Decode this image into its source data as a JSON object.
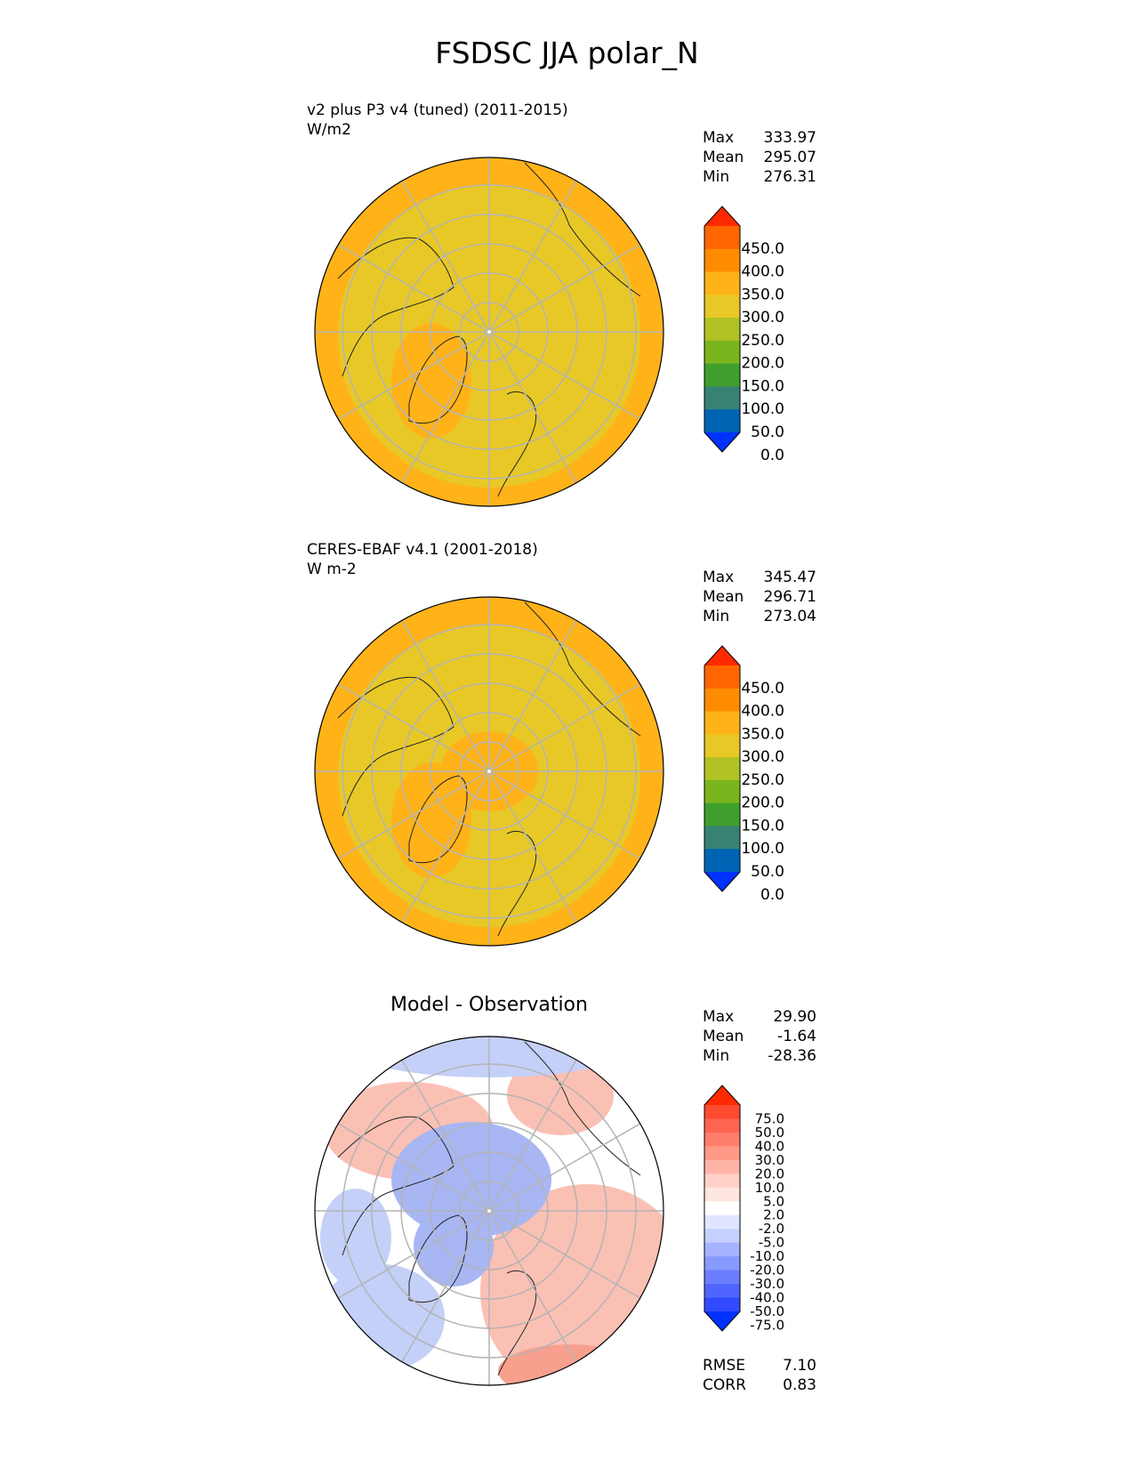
{
  "title": "FSDSC JJA polar_N",
  "panels": [
    {
      "title_line1": "v2 plus P3 v4 (tuned) (2011-2015)",
      "title_line2": "W/m2",
      "stats": [
        {
          "label": "Max",
          "value": "333.97"
        },
        {
          "label": "Mean",
          "value": "295.07"
        },
        {
          "label": "Min",
          "value": "276.31"
        }
      ],
      "colorbar": {
        "levels": [
          "450.0",
          "400.0",
          "350.0",
          "300.0",
          "250.0",
          "200.0",
          "150.0",
          "100.0",
          "50.0",
          "0.0"
        ],
        "colors": [
          "#ff2a00",
          "#ff6600",
          "#ff8c00",
          "#ffb319",
          "#e8c826",
          "#b0c224",
          "#7bb51d",
          "#3fa02d",
          "#378272",
          "#0064b4",
          "#0032ff"
        ]
      },
      "map": {
        "outer_fill": "#ffb319",
        "inner_fill": "#e8c826"
      }
    },
    {
      "title_line1": "CERES-EBAF v4.1 (2001-2018)",
      "title_line2": "W m-2",
      "stats": [
        {
          "label": "Max",
          "value": "345.47"
        },
        {
          "label": "Mean",
          "value": "296.71"
        },
        {
          "label": "Min",
          "value": "273.04"
        }
      ],
      "colorbar": {
        "levels": [
          "450.0",
          "400.0",
          "350.0",
          "300.0",
          "250.0",
          "200.0",
          "150.0",
          "100.0",
          "50.0",
          "0.0"
        ],
        "colors": [
          "#ff2a00",
          "#ff6600",
          "#ff8c00",
          "#ffb319",
          "#e8c826",
          "#b0c224",
          "#7bb51d",
          "#3fa02d",
          "#378272",
          "#0064b4",
          "#0032ff"
        ]
      },
      "map": {
        "outer_fill": "#ffb319",
        "inner_fill": "#e8c826"
      }
    },
    {
      "title_center": "Model - Observation",
      "stats": [
        {
          "label": "Max",
          "value": "29.90"
        },
        {
          "label": "Mean",
          "value": "-1.64"
        },
        {
          "label": "Min",
          "value": "-28.36"
        }
      ],
      "bottom_stats": [
        {
          "label": "RMSE",
          "value": "7.10"
        },
        {
          "label": "CORR",
          "value": "0.83"
        }
      ],
      "colorbar": {
        "levels": [
          "75.0",
          "50.0",
          "40.0",
          "30.0",
          "20.0",
          "10.0",
          "5.0",
          "2.0",
          "-2.0",
          "-5.0",
          "-10.0",
          "-20.0",
          "-30.0",
          "-40.0",
          "-50.0",
          "-75.0"
        ],
        "colors": [
          "#ff2a00",
          "#ff4a32",
          "#ff6450",
          "#ff7e6a",
          "#ff9a88",
          "#ffb4a6",
          "#ffd0c6",
          "#ffe6e0",
          "#ffffff",
          "#e0e6ff",
          "#c6d0ff",
          "#a6b4ff",
          "#889aff",
          "#6a7eff",
          "#5064ff",
          "#324aff",
          "#0032ff"
        ]
      },
      "map": {
        "outer_fill": "#ffffff",
        "inner_fill": "#ffffff",
        "warm_fill": "#fbc0b4",
        "cool_fill": "#c4d0f8",
        "deep_cool_fill": "#a8b6f4"
      }
    }
  ]
}
